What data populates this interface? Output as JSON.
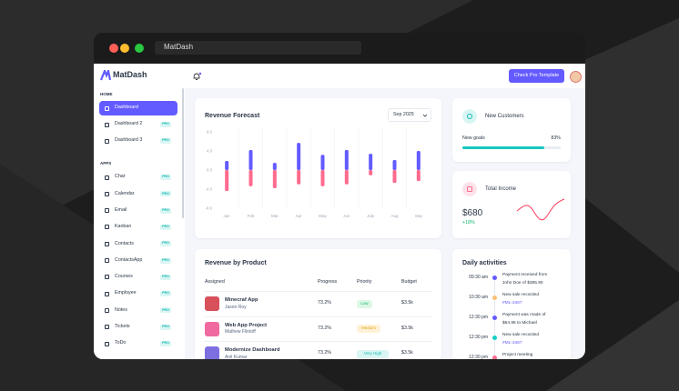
{
  "window": {
    "title": "MatDash"
  },
  "header": {
    "brand": "MatDash",
    "button": "Check Pro Template"
  },
  "sidebar": {
    "sections": [
      {
        "title": "HOME",
        "items": [
          {
            "label": "Dashboard",
            "active": true
          },
          {
            "label": "Dashboard 2",
            "badge": "PRO"
          },
          {
            "label": "Dashboard 3",
            "badge": "PRO"
          }
        ]
      },
      {
        "title": "APPS",
        "items": [
          {
            "label": "Chat",
            "badge": "PRO"
          },
          {
            "label": "Calendar",
            "badge": "PRO"
          },
          {
            "label": "Email",
            "badge": "PRO"
          },
          {
            "label": "Kanban",
            "badge": "PRO"
          },
          {
            "label": "Contacts",
            "badge": "PRO"
          },
          {
            "label": "ContactsApp",
            "badge": "PRO"
          },
          {
            "label": "Courses",
            "badge": "PRO"
          },
          {
            "label": "Employee",
            "badge": "PRO"
          },
          {
            "label": "Notes",
            "badge": "PRO"
          },
          {
            "label": "Tickets",
            "badge": "PRO"
          },
          {
            "label": "ToDo",
            "badge": "PRO"
          }
        ]
      }
    ]
  },
  "revenue_forecast": {
    "title": "Revenue Forecast",
    "period": "Sep 2025",
    "chart_data": {
      "type": "bar",
      "categories": [
        "Jan",
        "Feb",
        "Mar",
        "Apr",
        "May",
        "Jun",
        "July",
        "Aug",
        "Sep"
      ],
      "series": [
        {
          "color": "#635bff",
          "values": [
            1.9,
            4.2,
            1.5,
            5.7,
            3.2,
            4.2,
            3.4,
            2.1,
            4.0
          ]
        },
        {
          "color": "#ff6b8f",
          "values": [
            -4.4,
            -3.4,
            -3.8,
            -3.0,
            -3.4,
            -3.0,
            -1.1,
            -2.7,
            -2.3
          ]
        }
      ],
      "ylim": [
        -8,
        8
      ],
      "yticks": [
        {
          "value": 8,
          "label": "8.0"
        },
        {
          "value": 4,
          "label": "4.0"
        },
        {
          "value": 0,
          "label": "0.0"
        },
        {
          "value": -4,
          "label": "-4.0"
        },
        {
          "value": -8,
          "label": "-8.0"
        }
      ]
    }
  },
  "new_customers": {
    "title": "New Customers",
    "goal_text": "New goals",
    "goal_value": 83,
    "goal_label": "83%"
  },
  "total_income": {
    "title": "Total Income",
    "amount": "$680",
    "change": "+18%"
  },
  "revenue_by_product": {
    "title": "Revenue by Product",
    "columns": [
      "Assigned",
      "Progress",
      "Priority",
      "Budget"
    ],
    "rows": [
      {
        "name": "Minecraf App",
        "person": "Jason Roy",
        "progress": "73.2%",
        "priority": "Low",
        "budget": "$3.5k"
      },
      {
        "name": "Web App Project",
        "person": "Mathew Flintoff",
        "progress": "73.2%",
        "priority": "Medium",
        "budget": "$3.5k"
      },
      {
        "name": "Modernize Dashboard",
        "person": "Anil Kumar",
        "progress": "73.2%",
        "priority": "Very High",
        "budget": "$3.5k"
      }
    ]
  },
  "daily_activities": {
    "title": "Daily activities",
    "items": [
      {
        "time": "09:30 am",
        "lines": [
          "Payment received from",
          "John Doe of $385.90"
        ]
      },
      {
        "time": "10:30 am",
        "lines": [
          "New sale recorded"
        ],
        "link": "#ML-3467"
      },
      {
        "time": "12:30 pm",
        "lines": [
          "Payment was made of",
          "$64.95 to Michael"
        ]
      },
      {
        "time": "12:30 pm",
        "lines": [
          "New sale recorded"
        ],
        "link": "#ML-3467"
      },
      {
        "time": "12:30 pm",
        "lines": [
          "Project meeting"
        ]
      }
    ]
  }
}
